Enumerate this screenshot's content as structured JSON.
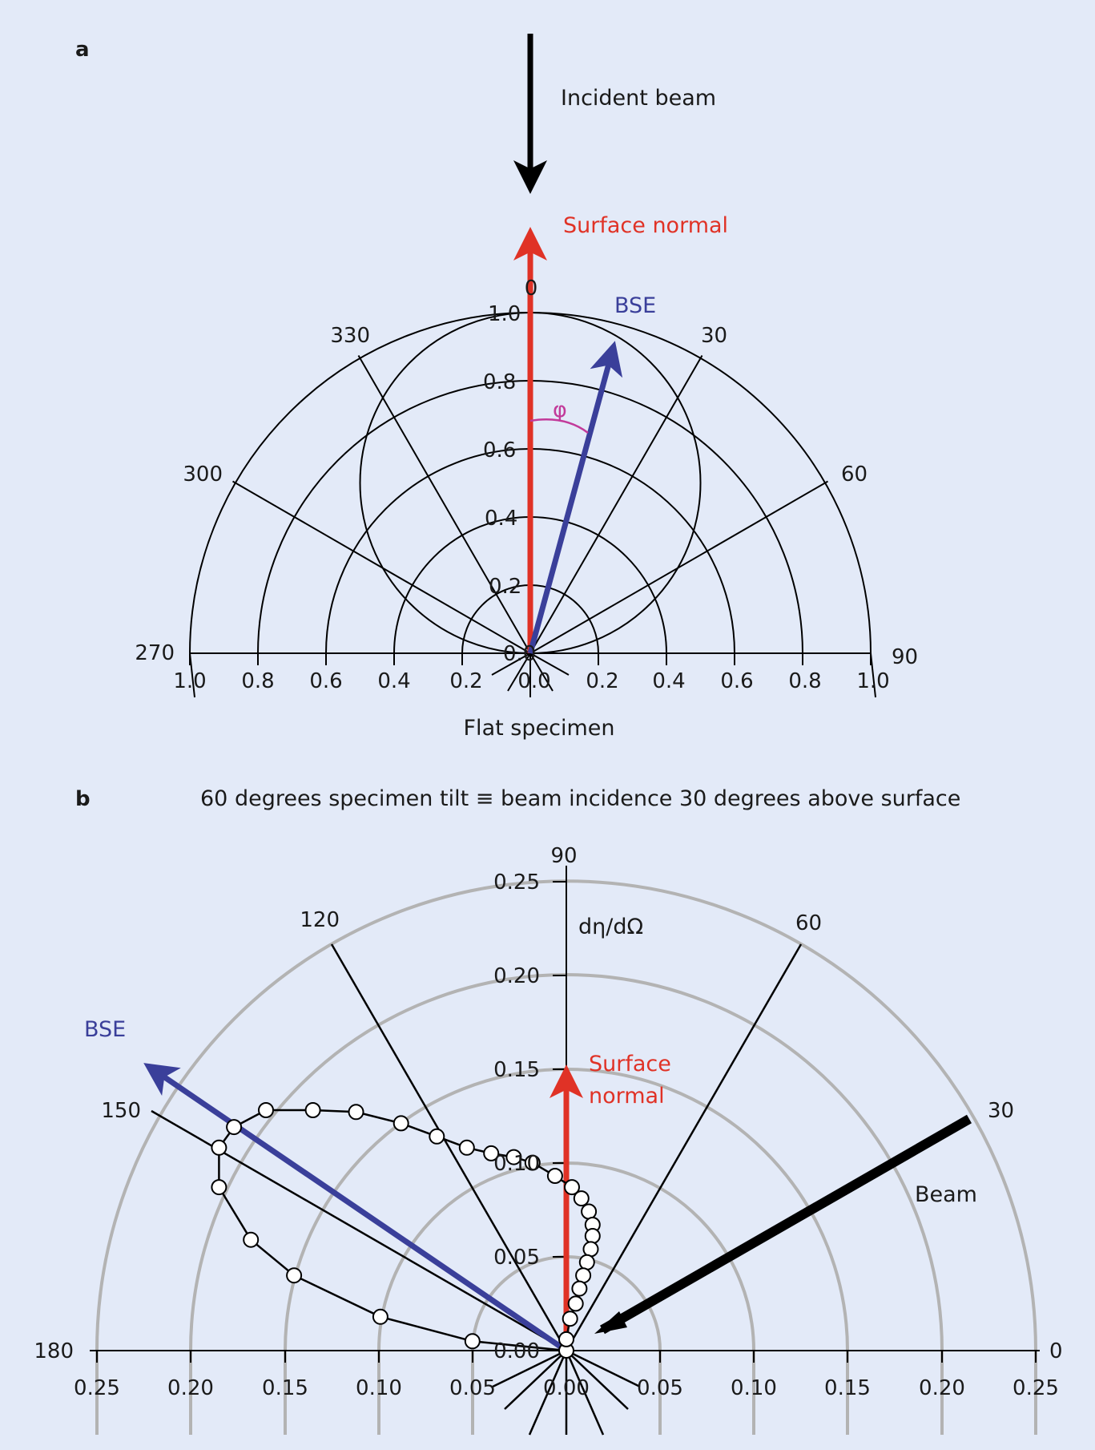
{
  "colors": {
    "background": "#e3eaf8",
    "normal": "#e03226",
    "bse": "#3a3f9a",
    "angle": "#c23a9a",
    "grid_b": "#b3b3b3"
  },
  "panel_a": {
    "letter": "a",
    "incident_beam_label": "Incident beam",
    "surface_normal_label": "Surface normal",
    "bse_label": "BSE",
    "phi_label": "φ",
    "specimen_label": "Flat specimen",
    "angle_labels": {
      "a0": "0",
      "a30": "30",
      "a60": "60",
      "a90": "90",
      "a270": "270",
      "a300": "300",
      "a330": "330"
    },
    "radial_labels": [
      "0.0",
      "0.2",
      "0.4",
      "0.6",
      "0.8",
      "1.0"
    ],
    "axis_labels": [
      "1.0",
      "0.8",
      "0.6",
      "0.4",
      "0.2",
      "0.0",
      "0.2",
      "0.4",
      "0.6",
      "0.8",
      "1.0"
    ]
  },
  "panel_b": {
    "letter": "b",
    "title": "60 degrees specimen tilt ≡ beam incidence 30 degrees above surface",
    "ylabel": "dη/dΩ",
    "bse_label": "BSE",
    "surface_normal_label_1": "Surface",
    "surface_normal_label_2": "normal",
    "beam_label": "Beam",
    "angle_labels": {
      "a0": "0",
      "a30": "30",
      "a60": "60",
      "a90": "90",
      "a120": "120",
      "a150": "150",
      "a180": "180"
    },
    "radial_labels": [
      "0.00",
      "0.05",
      "0.10",
      "0.15",
      "0.20",
      "0.25"
    ],
    "axis_labels": [
      "0.25",
      "0.20",
      "0.15",
      "0.10",
      "0.05",
      "0.00",
      "0.05",
      "0.10",
      "0.15",
      "0.20",
      "0.25"
    ]
  },
  "chart_data": {
    "type": "scatter",
    "title": "60 degrees specimen tilt ≡ beam incidence 30 degrees above surface",
    "ylabel": "dη/dΩ",
    "coordinate_system": "polar (x = lateral component, y = vertical component of dη/dΩ)",
    "series": [
      {
        "x": [
          0.0,
          -0.05,
          -0.099,
          -0.145,
          -0.168,
          -0.185,
          -0.185,
          -0.177,
          -0.16,
          -0.135,
          -0.112,
          -0.088,
          -0.069,
          -0.053,
          -0.04,
          -0.028,
          -0.018,
          -0.006,
          0.003,
          0.008,
          0.012,
          0.014,
          0.014,
          0.013,
          0.011,
          0.009,
          0.007,
          0.005,
          0.002,
          0.0
        ],
        "y": [
          0.0,
          0.005,
          0.018,
          0.04,
          0.059,
          0.087,
          0.108,
          0.119,
          0.128,
          0.128,
          0.127,
          0.121,
          0.114,
          0.108,
          0.105,
          0.103,
          0.1,
          0.093,
          0.087,
          0.081,
          0.074,
          0.067,
          0.061,
          0.054,
          0.047,
          0.04,
          0.033,
          0.025,
          0.017,
          0.006
        ]
      }
    ],
    "xlim": [
      -0.25,
      0.25
    ],
    "ylim": [
      0,
      0.25
    ],
    "grid": true
  }
}
